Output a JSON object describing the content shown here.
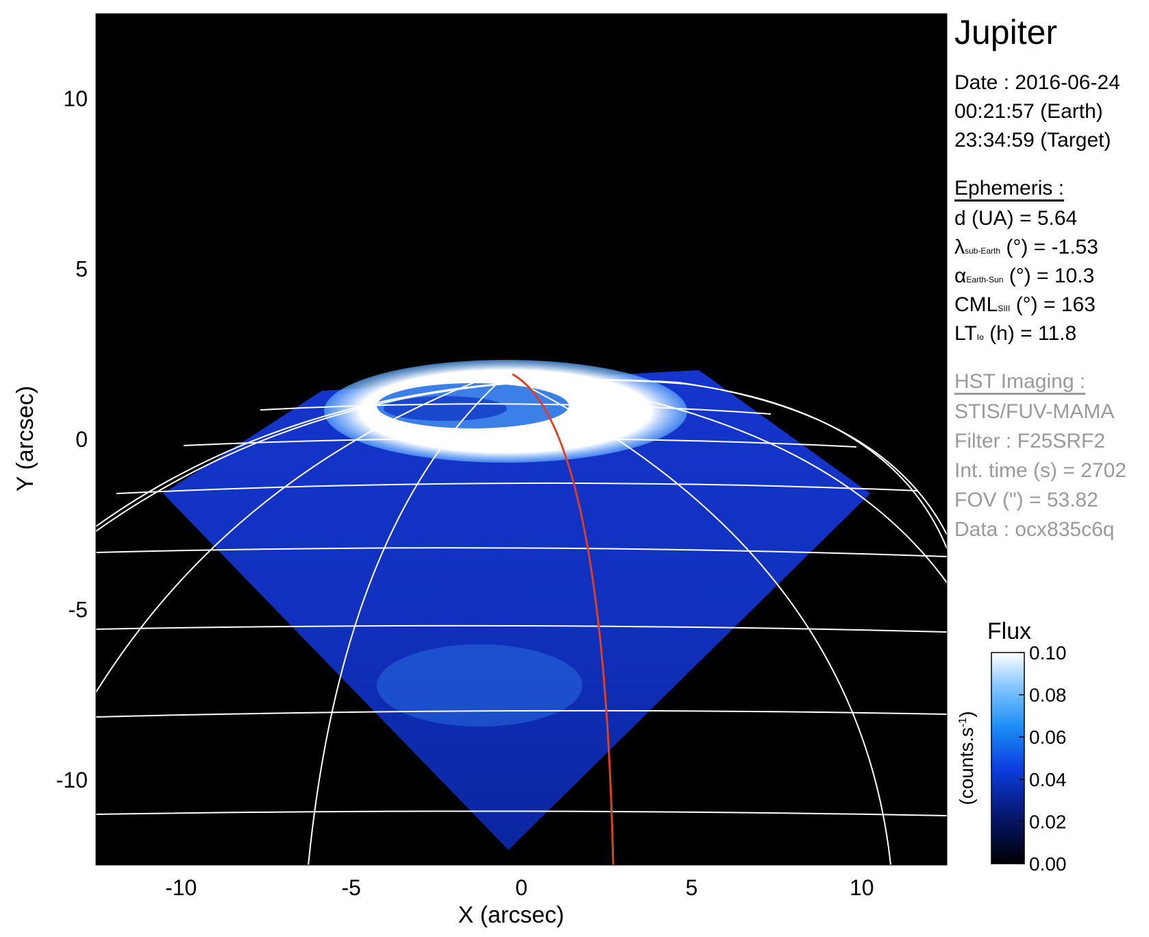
{
  "figure": {
    "x_axis_title": "X (arcsec)",
    "y_axis_title": "Y (arcsec)",
    "x_ticks": [
      "-10",
      "-5",
      "0",
      "5",
      "10"
    ],
    "y_ticks": [
      "10",
      "5",
      "0",
      "-5",
      "-10"
    ],
    "x_range": [
      -12.5,
      12.5
    ],
    "y_range": [
      -12.5,
      12.5
    ],
    "image_description_colors": {
      "background": "#000000",
      "emission_low": "#0a2fd1",
      "emission_high": "#ffffff",
      "grid": "#ffffff",
      "footprint_track": "#e0401e"
    }
  },
  "info": {
    "title": "Jupiter",
    "date": "Date : 2016-06-24",
    "time_earth": "00:21:57 (Earth)",
    "time_target": "23:34:59 (Target)",
    "ephemeris_heading": "Ephemeris :",
    "d_ua": "d (UA)    = 5.64",
    "lambda_main": "λ",
    "lambda_sub": "sub-Earth",
    "lambda_rest": " (°) = -1.53",
    "alpha_main": "α",
    "alpha_sub": "Earth-Sun",
    "alpha_rest": " (°) = 10.3",
    "cml_main": "CML",
    "cml_sub": "SIII",
    "cml_rest": " (°) = 163",
    "lt_main": "LT",
    "lt_sub": "Io",
    "lt_rest": " (h) = 11.8",
    "hst_heading": "HST Imaging :",
    "instrument": "STIS/FUV-MAMA",
    "filter": "Filter : F25SRF2",
    "int_time": "Int. time (s) = 2702",
    "fov": "FOV (\") = 53.82",
    "data_id": "Data : ocx835c6q"
  },
  "colorbar": {
    "title": "Flux",
    "unit": "(counts.s",
    "unit_sup": "-1",
    "unit_close": ")",
    "ticks": [
      "0.10",
      "0.08",
      "0.06",
      "0.04",
      "0.02",
      "0.00"
    ],
    "range": [
      0.0,
      0.1
    ]
  }
}
